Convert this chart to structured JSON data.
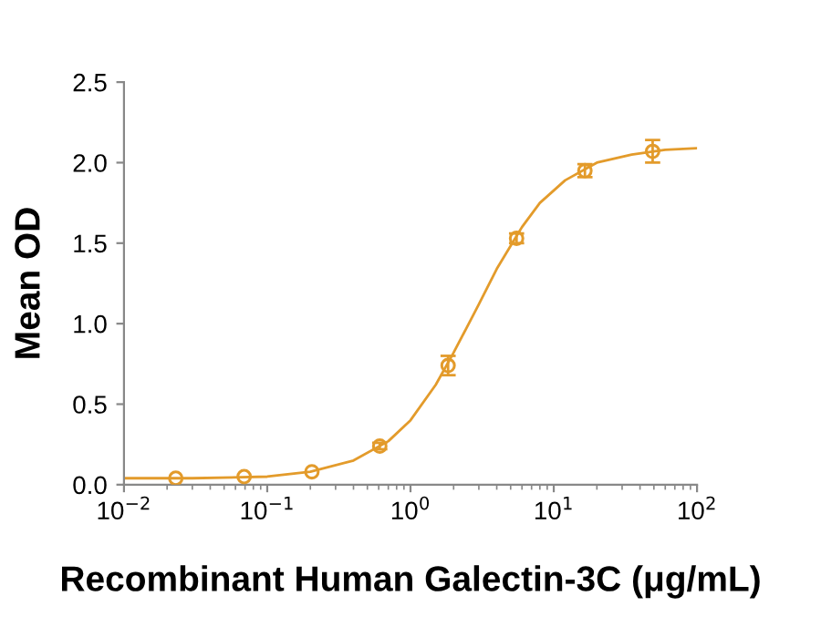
{
  "chart_data": {
    "type": "scatter",
    "xlabel": "Recombinant Human Galectin-3C (μg/mL)",
    "ylabel": "Mean OD",
    "log": "x",
    "xlim": [
      0.01,
      100
    ],
    "ylim": [
      0,
      2.5
    ],
    "xticks": [
      {
        "value": 0.01,
        "label": "10$^{−2}$"
      },
      {
        "value": 0.1,
        "label": "10$^{−1}$"
      },
      {
        "value": 1,
        "label": "10$^{0}$"
      },
      {
        "value": 10,
        "label": "10$^{1}$"
      },
      {
        "value": 100,
        "label": "10$^{2}$"
      }
    ],
    "yticks": [
      {
        "value": 0,
        "label": "0.0"
      },
      {
        "value": 0.5,
        "label": "0.5"
      },
      {
        "value": 1,
        "label": "1.0"
      },
      {
        "value": 1.5,
        "label": "1.5"
      },
      {
        "value": 2,
        "label": "2.0"
      },
      {
        "value": 2.5,
        "label": "2.5"
      }
    ],
    "grid": false,
    "legend": false,
    "series": [
      {
        "color": "#e39b2b",
        "marker": "circle",
        "x": [
          0.023,
          0.069,
          0.205,
          0.61,
          1.83,
          5.5,
          16.5,
          49
        ],
        "values": [
          0.04,
          0.05,
          0.08,
          0.24,
          0.74,
          1.53,
          1.95,
          2.07
        ],
        "errors": [
          null,
          null,
          null,
          0.02,
          0.06,
          0.03,
          0.04,
          0.07
        ]
      },
      {
        "type": "line",
        "color": "#e39b2b",
        "marker": "none",
        "line_style": "solid",
        "x": [
          0.01,
          0.03,
          0.1,
          0.2,
          0.4,
          0.7,
          1,
          1.5,
          2,
          3,
          4,
          6,
          8,
          12,
          20,
          35,
          60,
          100
        ],
        "values": [
          0.04,
          0.04,
          0.05,
          0.08,
          0.15,
          0.27,
          0.4,
          0.62,
          0.82,
          1.12,
          1.34,
          1.6,
          1.75,
          1.89,
          2.0,
          2.05,
          2.08,
          2.09
        ]
      }
    ]
  }
}
